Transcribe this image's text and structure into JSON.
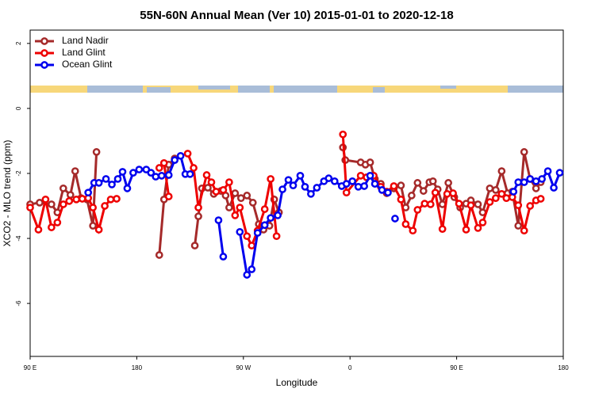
{
  "chart_data": {
    "type": "line",
    "title": "55N-60N Annual Mean (Ver 10)   2015-01-01 to 2020-12-18",
    "xlabel": "Longitude",
    "ylabel": "XCO2 - MLO trend (ppm)",
    "xlim": [
      90,
      540
    ],
    "ylim": [
      -7.63,
      2.41
    ],
    "xticks": [
      {
        "value": 90,
        "label": "90 E"
      },
      {
        "value": 180,
        "label": "180"
      },
      {
        "value": 270,
        "label": "90 W"
      },
      {
        "value": 360,
        "label": "0"
      },
      {
        "value": 450,
        "label": "90 E"
      },
      {
        "value": 540,
        "label": "180"
      }
    ],
    "yticks": [
      -6,
      -4,
      -2,
      0,
      2
    ],
    "legend": "top-left",
    "series": [
      {
        "name": "Land Nadir",
        "color": "#a52a2a",
        "x": [
          90,
          98,
          108,
          113,
          118,
          124,
          128,
          133,
          138,
          143,
          146,
          null,
          199,
          203,
          207,
          212,
          null,
          229,
          232,
          235,
          240,
          245,
          251,
          255,
          258,
          263,
          268,
          273,
          278,
          283,
          287,
          292,
          296,
          300,
          null,
          354,
          356,
          369,
          373,
          377,
          381,
          386,
          391,
          397,
          403,
          407,
          412,
          417,
          422,
          427,
          430,
          434,
          438,
          443,
          448,
          453,
          458,
          462,
          468,
          472,
          478,
          483,
          488,
          493,
          497,
          502,
          507,
          512,
          517,
          521
        ],
        "values": [
          -2.95,
          -2.9,
          -2.95,
          -3.2,
          -2.46,
          -2.66,
          -1.93,
          -2.76,
          -2.8,
          -3.61,
          -1.34,
          null,
          -4.51,
          -2.8,
          -1.73,
          -1.54,
          null,
          -4.22,
          -3.32,
          -2.46,
          -2.44,
          -2.63,
          -2.54,
          -2.68,
          -3.05,
          -2.61,
          -2.76,
          -2.68,
          -2.9,
          -3.56,
          -3.73,
          -3.61,
          -2.8,
          -3.2,
          null,
          -1.2,
          -1.59,
          -1.66,
          -1.73,
          -1.66,
          -2.17,
          -2.32,
          -2.61,
          -2.46,
          -2.37,
          -3.05,
          -2.68,
          -2.29,
          -2.54,
          -2.27,
          -2.24,
          -2.49,
          -2.95,
          -2.29,
          -2.73,
          -3.05,
          -2.93,
          -2.83,
          -2.95,
          -3.2,
          -2.46,
          -2.51,
          -1.93,
          -2.61,
          -2.56,
          -3.61,
          -1.34,
          -2.17,
          -2.46,
          -2.27
        ]
      },
      {
        "name": "Land Glint",
        "color": "#ee0000",
        "x": [
          90,
          97,
          103,
          108,
          113,
          118,
          123,
          129,
          134,
          139,
          143,
          148,
          153,
          158,
          163,
          null,
          199,
          203,
          207,
          null,
          223,
          228,
          232,
          239,
          243,
          247,
          253,
          258,
          263,
          267,
          273,
          277,
          282,
          288,
          293,
          298,
          null,
          354,
          357,
          369,
          374,
          380,
          386,
          391,
          397,
          403,
          407,
          413,
          417,
          423,
          428,
          432,
          438,
          442,
          447,
          452,
          458,
          462,
          468,
          472,
          478,
          483,
          488,
          492,
          497,
          502,
          507,
          512,
          517,
          521
        ],
        "values": [
          -3.05,
          -3.73,
          -2.8,
          -3.66,
          -3.51,
          -2.95,
          -2.85,
          -2.8,
          -2.78,
          -2.76,
          -3.05,
          -3.73,
          -3.0,
          -2.8,
          -2.78,
          null,
          -1.83,
          -1.68,
          -2.71,
          null,
          -1.39,
          -1.83,
          -3.05,
          -2.05,
          -2.27,
          -2.56,
          -2.51,
          -2.27,
          -3.29,
          -3.05,
          -3.93,
          -4.22,
          -3.76,
          -3.1,
          -2.17,
          -3.93,
          null,
          -0.8,
          -2.59,
          -2.07,
          -2.12,
          -2.07,
          -2.41,
          -2.56,
          -2.39,
          -2.8,
          -3.56,
          -3.76,
          -3.12,
          -2.93,
          -2.95,
          -2.59,
          -3.71,
          -2.63,
          -2.61,
          -2.93,
          -3.73,
          -2.98,
          -3.68,
          -3.51,
          -2.88,
          -2.76,
          -2.63,
          -2.76,
          -2.73,
          -2.98,
          -3.76,
          -3.0,
          -2.83,
          -2.78
        ]
      },
      {
        "name": "Ocean Glint",
        "color": "#0000ee",
        "x": [
          139,
          144,
          148,
          154,
          159,
          164,
          168,
          172,
          177,
          182,
          188,
          192,
          196,
          201,
          207,
          212,
          217,
          221,
          225,
          null,
          249,
          253,
          null,
          267,
          273,
          277,
          282,
          288,
          293,
          299,
          303,
          308,
          312,
          318,
          322,
          327,
          332,
          338,
          342,
          347,
          353,
          357,
          362,
          367,
          372,
          377,
          381,
          387,
          392,
          null,
          398,
          null,
          498,
          502,
          507,
          512,
          517,
          522,
          527,
          532,
          537
        ],
        "values": [
          -2.59,
          -2.29,
          -2.29,
          -2.17,
          -2.34,
          -2.17,
          -1.95,
          -2.46,
          -1.98,
          -1.88,
          -1.88,
          -1.98,
          -2.1,
          -2.07,
          -2.05,
          -1.59,
          -1.46,
          -2.02,
          -2.02,
          null,
          -3.44,
          -4.56,
          null,
          -3.8,
          -5.12,
          -4.95,
          -3.83,
          -3.59,
          -3.37,
          -3.29,
          -2.49,
          -2.2,
          -2.37,
          -2.07,
          -2.41,
          -2.63,
          -2.44,
          -2.24,
          -2.15,
          -2.24,
          -2.39,
          -2.32,
          -2.24,
          -2.41,
          -2.39,
          -2.07,
          -2.32,
          -2.51,
          -2.59,
          null,
          -3.39,
          null,
          -2.56,
          -2.27,
          -2.27,
          -2.17,
          -2.24,
          -2.17,
          -1.93,
          -2.44,
          -1.98
        ]
      }
    ]
  }
}
